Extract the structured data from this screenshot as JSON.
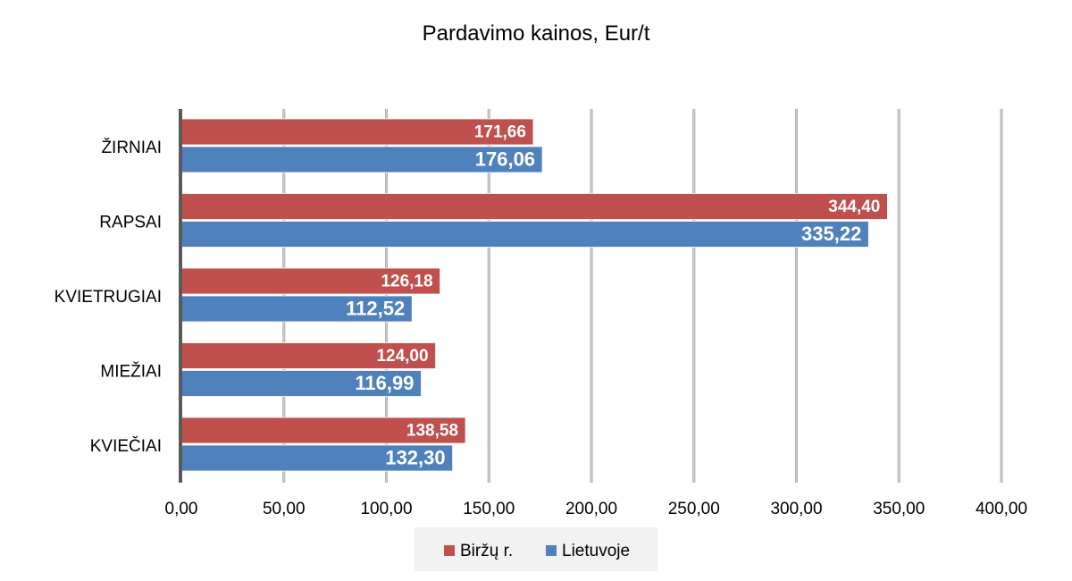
{
  "chart_data": {
    "type": "bar",
    "orientation": "horizontal",
    "title": "Pardavimo kainos, Eur/t",
    "categories": [
      "ŽIRNIAI",
      "RAPSAI",
      "KVIETRUGIAI",
      "MIEŽIAI",
      "KVIEČIAI"
    ],
    "series": [
      {
        "name": "Biržų r.",
        "color": "#c0504d",
        "values": [
          171.66,
          344.4,
          126.18,
          124.0,
          138.58
        ],
        "labels": [
          "171,66",
          "344,40",
          "126,18",
          "124,00",
          "138,58"
        ]
      },
      {
        "name": "Lietuvoje",
        "color": "#4f81bd",
        "values": [
          176.06,
          335.22,
          112.52,
          116.99,
          132.3
        ],
        "labels": [
          "176,06",
          "335,22",
          "112,52",
          "116,99",
          "132,30"
        ]
      }
    ],
    "xlim": [
      0,
      400
    ],
    "xticks": [
      0,
      50,
      100,
      150,
      200,
      250,
      300,
      350,
      400
    ],
    "xtick_labels": [
      "0,00",
      "50,00",
      "100,00",
      "150,00",
      "200,00",
      "250,00",
      "300,00",
      "350,00",
      "400,00"
    ],
    "grid": true,
    "legend_position": "bottom"
  }
}
